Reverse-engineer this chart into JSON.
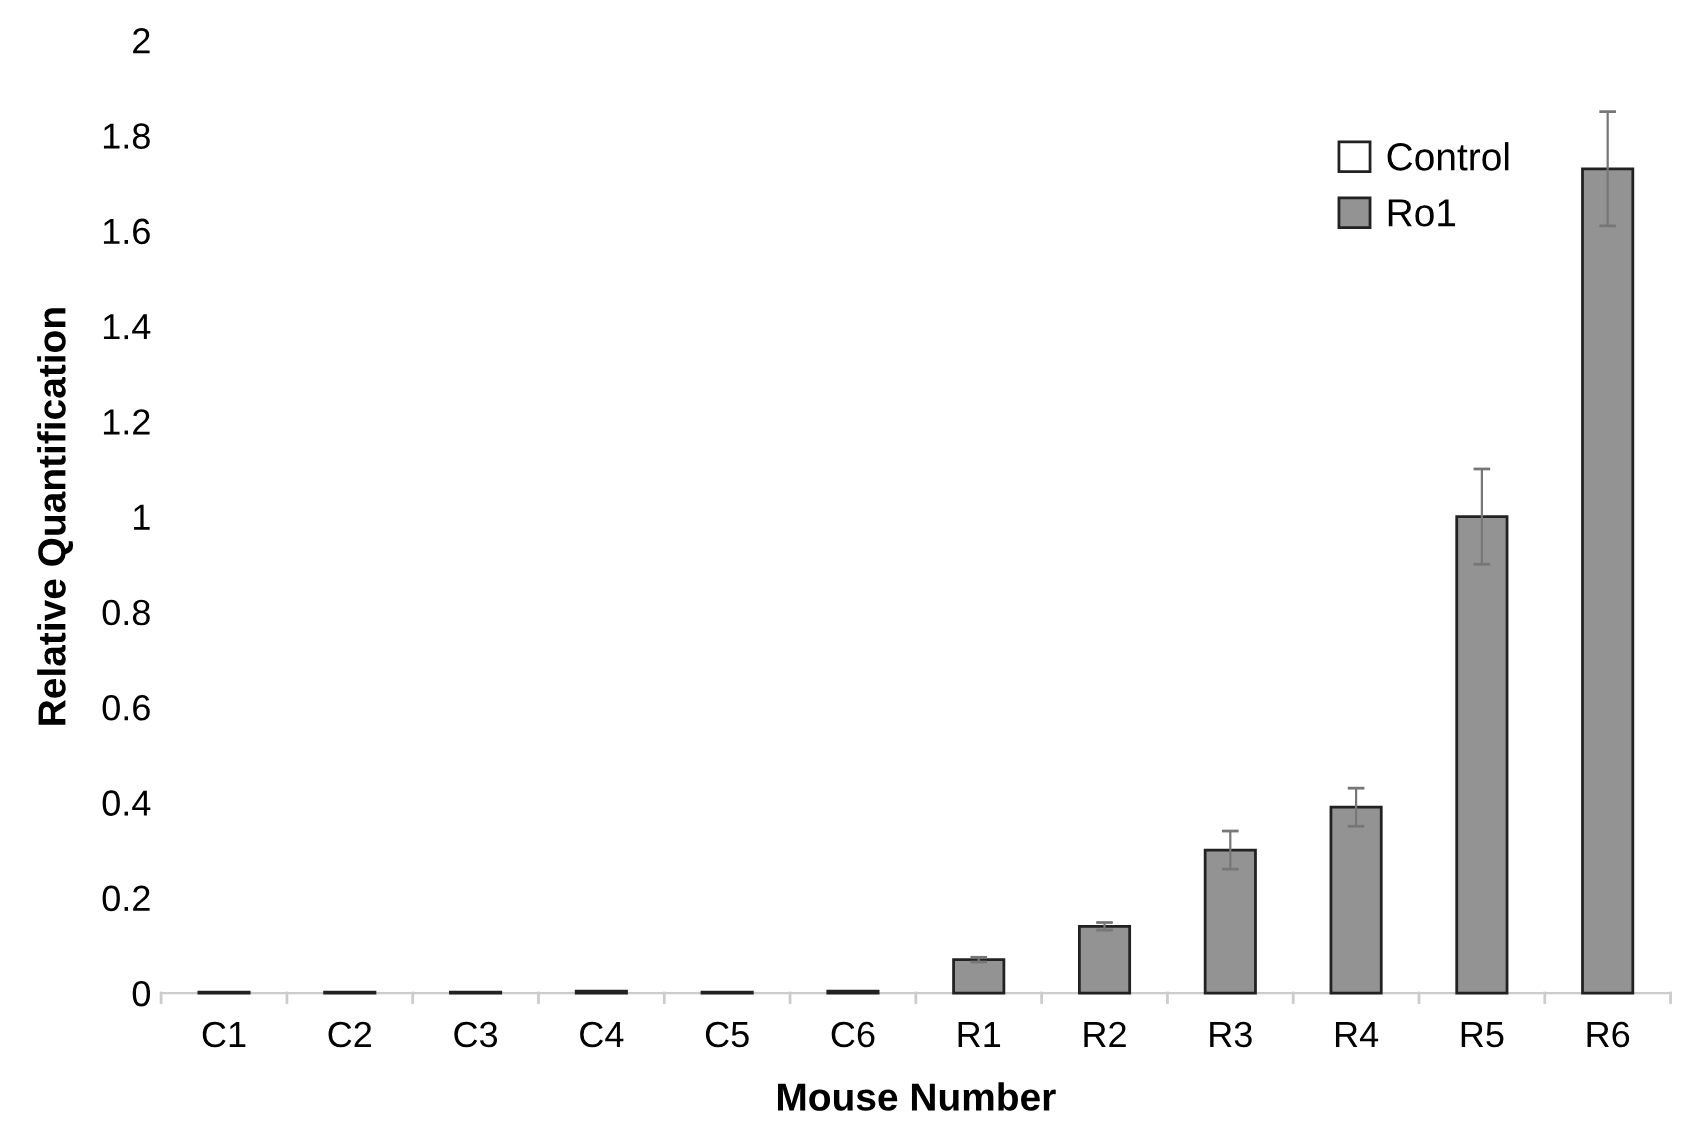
{
  "chart_data": {
    "type": "bar",
    "xlabel": "Mouse Number",
    "ylabel": "Relative Quantification",
    "categories": [
      "C1",
      "C2",
      "C3",
      "C4",
      "C5",
      "C6",
      "R1",
      "R2",
      "R3",
      "R4",
      "R5",
      "R6"
    ],
    "series": [
      {
        "name": "Control",
        "color": "#ffffff",
        "values": [
          0.002,
          0.002,
          0.002,
          0.004,
          0.002,
          0.004,
          null,
          null,
          null,
          null,
          null,
          null
        ],
        "errors": [
          null,
          null,
          null,
          null,
          null,
          null,
          null,
          null,
          null,
          null,
          null,
          null
        ]
      },
      {
        "name": "Ro1",
        "color": "#939393",
        "values": [
          null,
          null,
          null,
          null,
          null,
          null,
          0.07,
          0.14,
          0.3,
          0.39,
          1.0,
          1.73
        ],
        "errors": [
          null,
          null,
          null,
          null,
          null,
          null,
          0.005,
          0.008,
          0.04,
          0.04,
          0.1,
          0.12
        ]
      }
    ],
    "ylim": [
      0,
      2
    ],
    "yticks": [
      0,
      0.2,
      0.4,
      0.6,
      0.8,
      1,
      1.2,
      1.4,
      1.6,
      1.8,
      2
    ],
    "grid": false,
    "legend": "top right"
  }
}
